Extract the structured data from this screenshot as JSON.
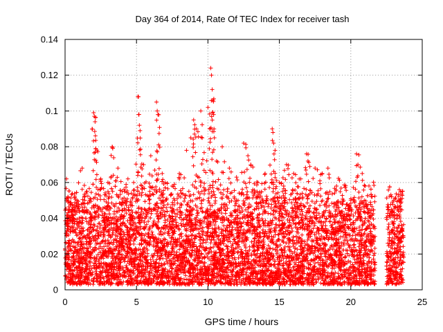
{
  "chart_data": {
    "type": "scatter",
    "title": "Day 364 of 2014, Rate Of TEC Index for receiver tash",
    "xlabel": "GPS time / hours",
    "ylabel": "ROTI / TECUs",
    "xlim": [
      0,
      25
    ],
    "ylim": [
      0,
      0.14
    ],
    "xticks": [
      0,
      5,
      10,
      15,
      20,
      25
    ],
    "xtick_labels": [
      "0",
      "5",
      "10",
      "15",
      "20",
      "25"
    ],
    "yticks": [
      0,
      0.02,
      0.04,
      0.06,
      0.08,
      0.1,
      0.12,
      0.14
    ],
    "ytick_labels": [
      "0",
      "0.02",
      "0.04",
      "0.06",
      "0.08",
      "0.1",
      "0.12",
      "0.14"
    ],
    "grid": true,
    "marker": "+",
    "marker_color": "#ff0000",
    "data_gaps_hours": [
      [
        21.7,
        22.5
      ],
      [
        23.7,
        25
      ]
    ],
    "series": [
      {
        "name": "ROTI",
        "points": [
          [
            0.1,
            0.062
          ],
          [
            0.2,
            0.052
          ],
          [
            0.3,
            0.045
          ],
          [
            0.5,
            0.038
          ],
          [
            0.8,
            0.048
          ],
          [
            1.2,
            0.068
          ],
          [
            1.5,
            0.055
          ],
          [
            2.0,
            0.099
          ],
          [
            2.05,
            0.097
          ],
          [
            2.1,
            0.094
          ],
          [
            2.15,
            0.079
          ],
          [
            2.5,
            0.062
          ],
          [
            3.0,
            0.06
          ],
          [
            3.3,
            0.08
          ],
          [
            3.7,
            0.068
          ],
          [
            4.0,
            0.055
          ],
          [
            4.4,
            0.062
          ],
          [
            4.8,
            0.06
          ],
          [
            5.1,
            0.108
          ],
          [
            5.15,
            0.098
          ],
          [
            5.2,
            0.092
          ],
          [
            5.25,
            0.089
          ],
          [
            5.5,
            0.07
          ],
          [
            6.0,
            0.075
          ],
          [
            6.4,
            0.105
          ],
          [
            6.45,
            0.1
          ],
          [
            6.5,
            0.098
          ],
          [
            6.55,
            0.081
          ],
          [
            6.8,
            0.065
          ],
          [
            7.0,
            0.06
          ],
          [
            7.5,
            0.058
          ],
          [
            8.0,
            0.065
          ],
          [
            8.5,
            0.078
          ],
          [
            8.8,
            0.085
          ],
          [
            9.0,
            0.095
          ],
          [
            9.2,
            0.09
          ],
          [
            9.5,
            0.1
          ],
          [
            9.6,
            0.085
          ],
          [
            10.0,
            0.102
          ],
          [
            10.2,
            0.124
          ],
          [
            10.25,
            0.12
          ],
          [
            10.3,
            0.112
          ],
          [
            10.35,
            0.106
          ],
          [
            10.4,
            0.098
          ],
          [
            10.45,
            0.085
          ],
          [
            10.6,
            0.072
          ],
          [
            11.0,
            0.08
          ],
          [
            11.5,
            0.068
          ],
          [
            12.0,
            0.063
          ],
          [
            12.5,
            0.082
          ],
          [
            12.8,
            0.075
          ],
          [
            13.0,
            0.07
          ],
          [
            13.5,
            0.06
          ],
          [
            14.0,
            0.065
          ],
          [
            14.5,
            0.09
          ],
          [
            14.55,
            0.088
          ],
          [
            14.6,
            0.082
          ],
          [
            14.7,
            0.078
          ],
          [
            15.0,
            0.06
          ],
          [
            15.3,
            0.058
          ],
          [
            15.5,
            0.07
          ],
          [
            16.0,
            0.065
          ],
          [
            16.5,
            0.062
          ],
          [
            16.9,
            0.076
          ],
          [
            17.0,
            0.072
          ],
          [
            17.5,
            0.068
          ],
          [
            18.0,
            0.065
          ],
          [
            18.4,
            0.068
          ],
          [
            19.0,
            0.058
          ],
          [
            19.5,
            0.04
          ],
          [
            20.0,
            0.05
          ],
          [
            20.4,
            0.076
          ],
          [
            20.5,
            0.07
          ],
          [
            20.8,
            0.065
          ],
          [
            21.0,
            0.058
          ],
          [
            21.5,
            0.052
          ],
          [
            22.6,
            0.045
          ],
          [
            23.0,
            0.05
          ],
          [
            23.4,
            0.056
          ],
          [
            23.6,
            0.055
          ]
        ],
        "typical_range": [
          0.003,
          0.05
        ]
      }
    ]
  }
}
